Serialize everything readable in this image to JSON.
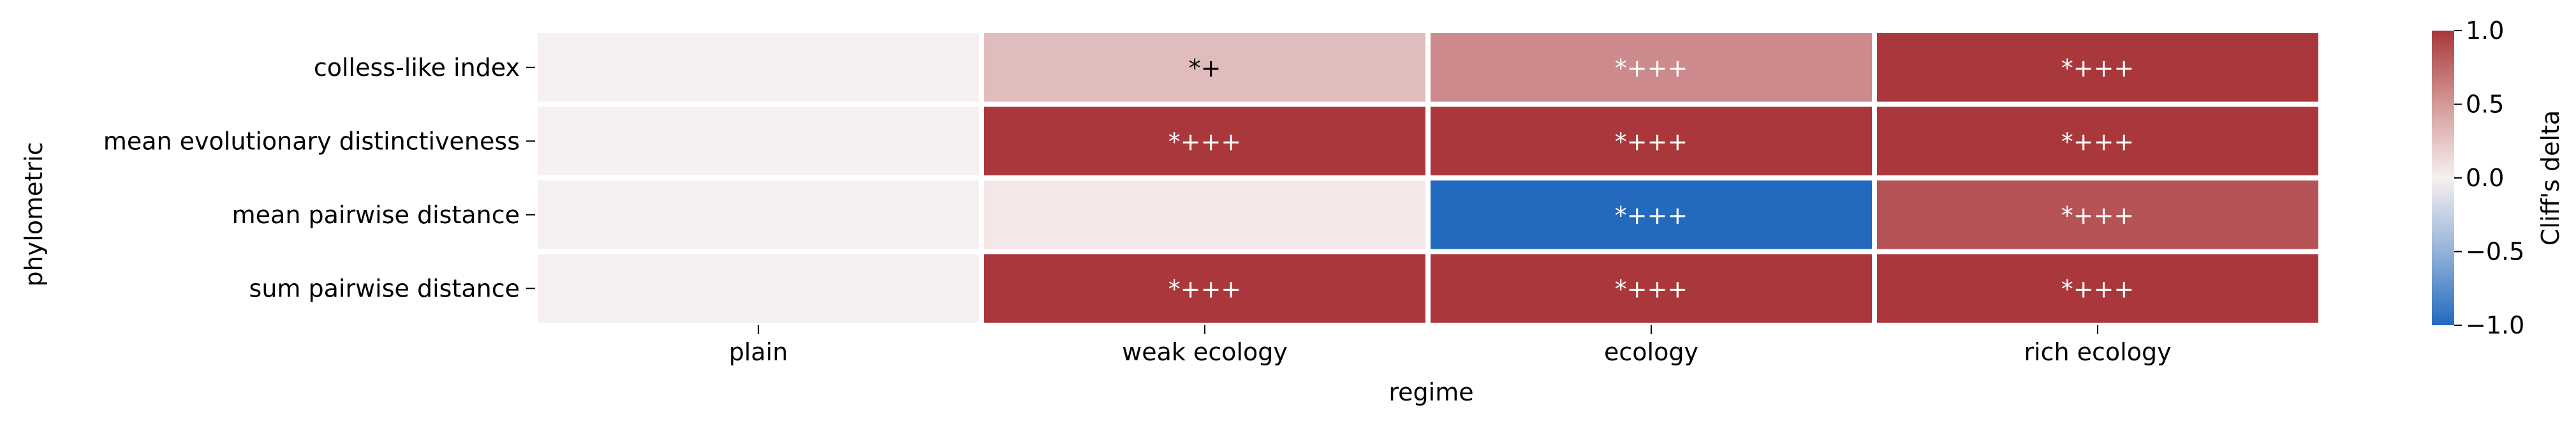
{
  "chart_data": {
    "type": "heatmap",
    "xlabel": "regime",
    "ylabel": "phylometric",
    "x_categories": [
      "plain",
      "weak ecology",
      "ecology",
      "rich ecology"
    ],
    "y_categories": [
      "colless-like index",
      "mean evolutionary distinctiveness",
      "mean pairwise distance",
      "sum pairwise distance"
    ],
    "values": [
      [
        0.0,
        0.28,
        0.55,
        1.0
      ],
      [
        0.0,
        1.0,
        1.0,
        1.0
      ],
      [
        0.0,
        0.05,
        -1.0,
        0.85
      ],
      [
        0.0,
        1.0,
        1.0,
        1.0
      ]
    ],
    "annotations": [
      [
        "",
        "*+",
        "*+++",
        "*+++"
      ],
      [
        "",
        "*+++",
        "*+++",
        "*+++"
      ],
      [
        "",
        "",
        "*+++",
        "*+++"
      ],
      [
        "",
        "*+++",
        "*+++",
        "*+++"
      ]
    ],
    "colorbar": {
      "label": "Cliff's delta",
      "range": [
        -1.0,
        1.0
      ],
      "ticks": [
        "1.0",
        "0.5",
        "0.0",
        "−0.5",
        "−1.0"
      ],
      "tick_values": [
        1.0,
        0.5,
        0.0,
        -0.5,
        -1.0
      ],
      "colormap": "vlag",
      "low_color": "#2369bd",
      "mid_color": "#f7f0f0",
      "high_color": "#a9373b"
    }
  }
}
